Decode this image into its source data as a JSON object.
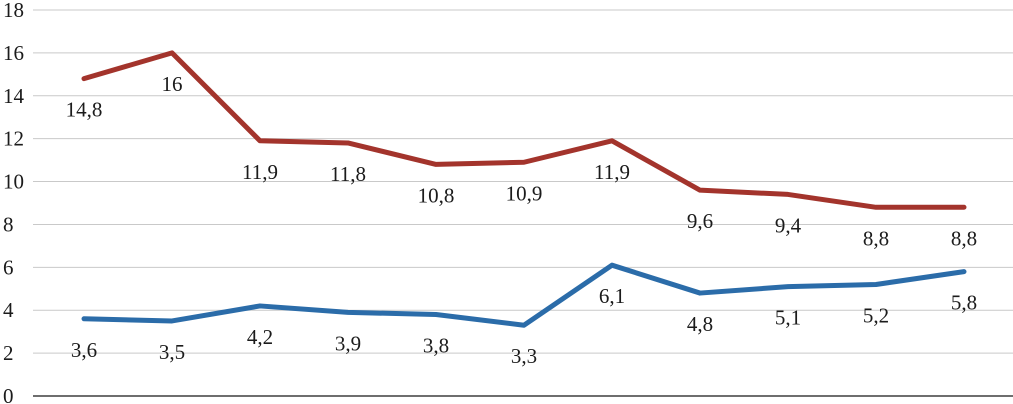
{
  "chart_data": {
    "type": "line",
    "title": "",
    "xlabel": "",
    "ylabel": "",
    "ylim": [
      0,
      18
    ],
    "yticks": [
      0,
      2,
      4,
      6,
      8,
      10,
      12,
      14,
      16,
      18
    ],
    "ytick_labels": [
      "0",
      "2",
      "4",
      "6",
      "8",
      "10",
      "12",
      "14",
      "16",
      "18"
    ],
    "grid": true,
    "legend": "none",
    "decimal_separator": ",",
    "point_count": 11,
    "series": [
      {
        "name": "red-series",
        "color": "#A3342C",
        "values": [
          14.8,
          16,
          11.9,
          11.8,
          10.8,
          10.9,
          11.9,
          9.6,
          9.4,
          8.8,
          8.8
        ],
        "labels": [
          "14,8",
          "16",
          "11,9",
          "11,8",
          "10,8",
          "10,9",
          "11,9",
          "9,6",
          "9,4",
          "8,8",
          "8,8"
        ]
      },
      {
        "name": "blue-series",
        "color": "#2B6CA9",
        "values": [
          3.6,
          3.5,
          4.2,
          3.9,
          3.8,
          3.3,
          6.1,
          4.8,
          5.1,
          5.2,
          5.8
        ],
        "labels": [
          "3,6",
          "3,5",
          "4,2",
          "3,9",
          "3,8",
          "3,3",
          "6,1",
          "4,8",
          "5,1",
          "5,2",
          "5,8"
        ]
      }
    ]
  }
}
